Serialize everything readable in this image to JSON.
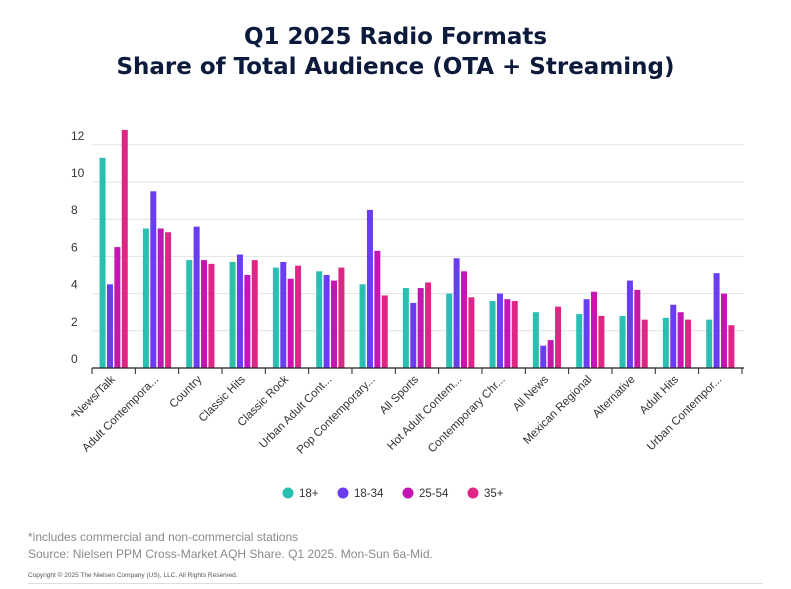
{
  "chart_data": {
    "type": "bar",
    "title_line1": "Q1 2025 Radio Formats",
    "title_line2": "Share of Total Audience (OTA + Streaming)",
    "xlabel": "",
    "ylabel": "",
    "ylim": [
      0,
      13
    ],
    "yticks": [
      "0",
      "2",
      "4",
      "6",
      "8",
      "10",
      "12"
    ],
    "grid": true,
    "legend_position": "bottom-center",
    "categories": [
      "*News/Talk",
      "Adult Contempora...",
      "Country",
      "Classic Hits",
      "Classic Rock",
      "Urban Adult Cont...",
      "Pop Contemporary...",
      "All Sports",
      "Hot Adult Contem...",
      "Contemporary Chr...",
      "All News",
      "Mexican Regional",
      "Alternative",
      "Adult Hits",
      "Urban Contempor..."
    ],
    "series": [
      {
        "name": "18+",
        "color": "#2bbfb3",
        "values": [
          11.3,
          7.5,
          5.8,
          5.7,
          5.4,
          5.2,
          4.5,
          4.3,
          4.0,
          3.6,
          3.0,
          2.9,
          2.8,
          2.7,
          2.6
        ]
      },
      {
        "name": "18-34",
        "color": "#6b3df2",
        "values": [
          4.5,
          9.5,
          7.6,
          6.1,
          5.7,
          5.0,
          8.5,
          3.5,
          5.9,
          4.0,
          1.2,
          3.7,
          4.7,
          3.4,
          5.1
        ]
      },
      {
        "name": "25-54",
        "color": "#c516b3",
        "values": [
          6.5,
          7.5,
          5.8,
          5.0,
          4.8,
          4.7,
          6.3,
          4.3,
          5.2,
          3.7,
          1.5,
          4.1,
          4.2,
          3.0,
          4.0
        ]
      },
      {
        "name": "35+",
        "color": "#df2586",
        "values": [
          12.8,
          7.3,
          5.6,
          5.8,
          5.5,
          5.4,
          3.9,
          4.6,
          3.8,
          3.6,
          3.3,
          2.8,
          2.6,
          2.6,
          2.3
        ]
      }
    ]
  },
  "footer": {
    "note": "*includes commercial and non-commercial stations",
    "source": "Source: Nielsen PPM Cross-Market AQH Share. Q1 2025. Mon-Sun 6a-Mid.",
    "copyright": "Copyright © 2025 The Nielsen Company (US), LLC. All Rights Reserved."
  }
}
